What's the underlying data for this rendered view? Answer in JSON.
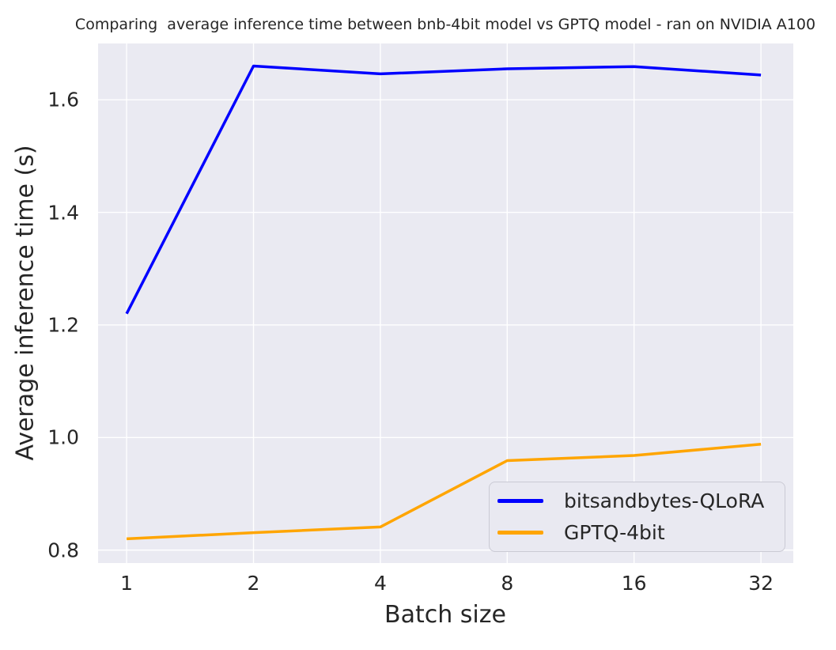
{
  "chart_data": {
    "type": "line",
    "title": "Comparing  average inference time between bnb-4bit model vs GPTQ model - ran on NVIDIA A100",
    "xlabel": "Batch size",
    "ylabel": "Average inference time (s)",
    "categories": [
      "1",
      "2",
      "4",
      "8",
      "16",
      "32"
    ],
    "series": [
      {
        "name": "bitsandbytes-QLoRA",
        "color": "#0000ff",
        "values": [
          1.22,
          1.66,
          1.646,
          1.655,
          1.659,
          1.644
        ]
      },
      {
        "name": "GPTQ-4bit",
        "color": "#ffa500",
        "values": [
          0.82,
          0.831,
          0.841,
          0.959,
          0.968,
          0.988
        ]
      }
    ],
    "yticks": [
      "0.8",
      "1.0",
      "1.2",
      "1.4",
      "1.6"
    ],
    "ylim": [
      0.777,
      1.7
    ],
    "xlim_index": [
      -0.225,
      5.255
    ],
    "grid": true,
    "legend_position": "lower right",
    "line_width": 3.5,
    "colors": {
      "figure_bg": "#ffffff",
      "plot_bg": "#eaeaf2",
      "grid": "#ffffff",
      "text": "#262626",
      "legend_bg": "#e9e9f1",
      "legend_border": "#cacad4"
    }
  }
}
